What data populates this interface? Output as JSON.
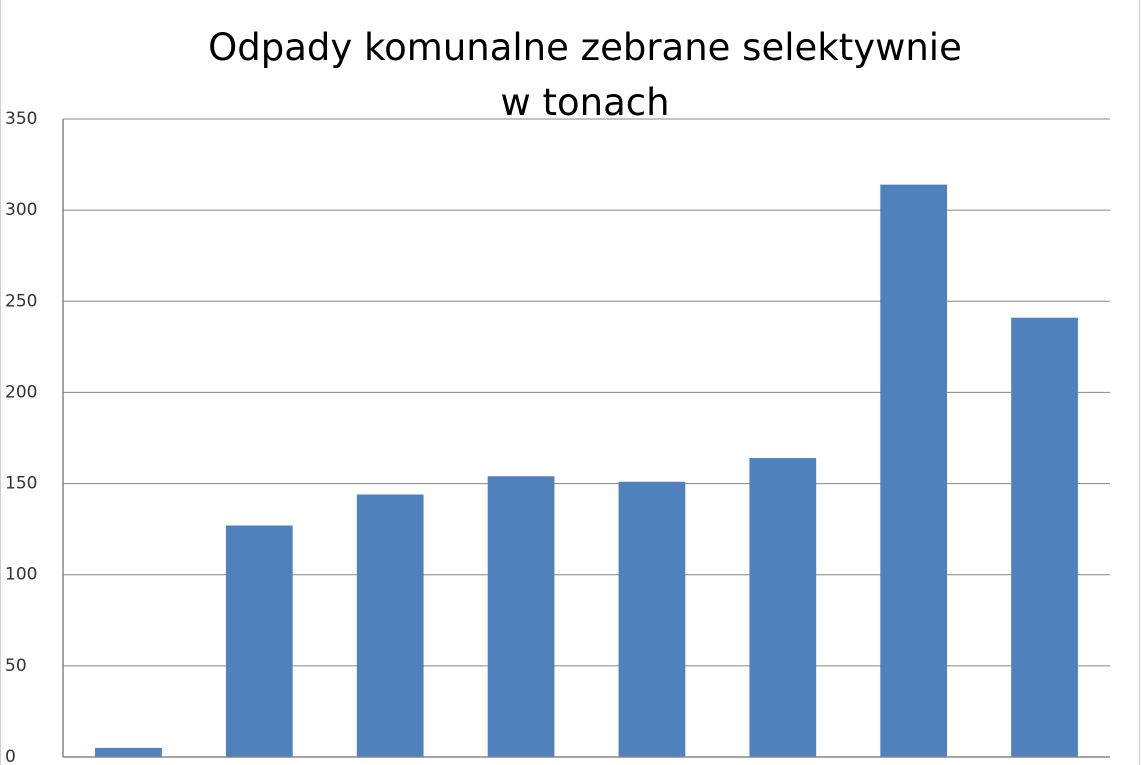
{
  "chart_data": {
    "type": "bar",
    "title": [
      "Odpady komunalne zebrane selektywnie",
      "w tonach"
    ],
    "categories": [
      null,
      null,
      null,
      null,
      null,
      null,
      null,
      null
    ],
    "values": [
      5,
      127,
      144,
      154,
      151,
      164,
      314,
      241
    ],
    "color": "#4f81bd",
    "ylim": [
      0,
      350
    ],
    "yticks": [
      0,
      50,
      100,
      150,
      200,
      250,
      300,
      350
    ],
    "grid": true
  }
}
